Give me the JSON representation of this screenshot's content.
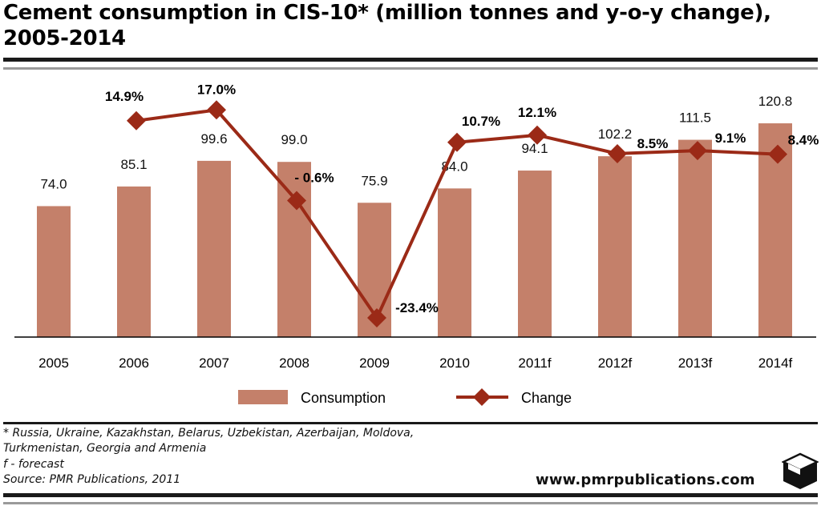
{
  "title": "Cement consumption in CIS-10* (million tonnes and y-o-y change), 2005-2014",
  "chart_data": {
    "type": "bar",
    "categories": [
      "2005",
      "2006",
      "2007",
      "2008",
      "2009",
      "2010",
      "2011f",
      "2012f",
      "2013f",
      "2014f"
    ],
    "series": [
      {
        "name": "Consumption",
        "type": "bar",
        "color": "#c4806a",
        "values": [
          74.0,
          85.1,
          99.6,
          99.0,
          75.9,
          84.0,
          94.1,
          102.2,
          111.5,
          120.8
        ],
        "labels": [
          "74.0",
          "85.1",
          "99.6",
          "99.0",
          "75.9",
          "84.0",
          "94.1",
          "102.2",
          "111.5",
          "120.8"
        ]
      },
      {
        "name": "Change",
        "type": "line",
        "marker": "diamond",
        "color": "#9b2a17",
        "values": [
          null,
          14.9,
          17.0,
          -0.6,
          -23.4,
          10.7,
          12.1,
          8.5,
          9.1,
          8.4
        ],
        "labels": [
          "",
          "14.9%",
          "17.0%",
          "- 0.6%",
          "-23.4%",
          "10.7%",
          "12.1%",
          "8.5%",
          "9.1%",
          "8.4%"
        ]
      }
    ],
    "legend": {
      "position": "bottom",
      "items": [
        "Consumption",
        "Change"
      ]
    },
    "grid": false
  },
  "footnotes": {
    "countries": "* Russia, Ukraine, Kazakhstan, Belarus, Uzbekistan, Azerbaijan, Moldova, Turkmenistan, Georgia and Armenia",
    "forecast": "f - forecast",
    "source": "Source: PMR Publications, 2011"
  },
  "website": "www.pmrpublications.com",
  "logo_icon": "cube-logo-icon"
}
